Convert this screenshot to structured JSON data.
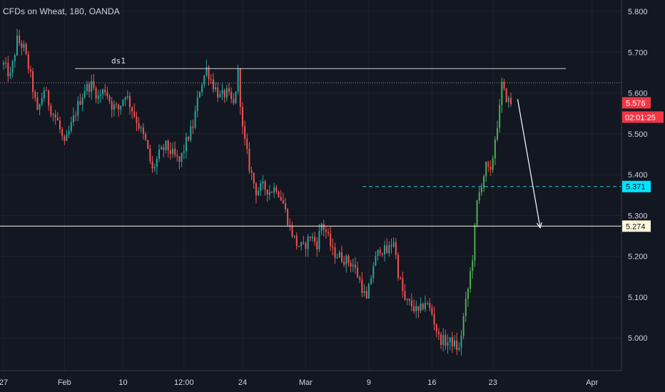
{
  "header": {
    "title": "CFDs on Wheat, 180, OANDA"
  },
  "chart_data": {
    "type": "candlestick",
    "symbol": "CFDs on Wheat",
    "interval": "180",
    "source": "OANDA",
    "y_ticks": [
      "5.800",
      "5.700",
      "5.600",
      "5.500",
      "5.400",
      "5.300",
      "5.200",
      "5.100",
      "5.000"
    ],
    "y_tick_values": [
      5.8,
      5.7,
      5.6,
      5.5,
      5.4,
      5.3,
      5.2,
      5.1,
      5.0
    ],
    "ylim": [
      4.92,
      5.828
    ],
    "x_labels": [
      {
        "label": "27",
        "idx": 0
      },
      {
        "label": "Feb",
        "idx": 27
      },
      {
        "label": "10",
        "idx": 53
      },
      {
        "label": "12:00",
        "idx": 80
      },
      {
        "label": "24",
        "idx": 106
      },
      {
        "label": "Mar",
        "idx": 134
      },
      {
        "label": "9",
        "idx": 162
      },
      {
        "label": "16",
        "idx": 190
      },
      {
        "label": "23",
        "idx": 217
      },
      {
        "label": "Apr",
        "idx": 261
      }
    ],
    "candle_count": 226,
    "price_path": [
      [
        0,
        5.67
      ],
      [
        3,
        5.64
      ],
      [
        6,
        5.73
      ],
      [
        9,
        5.71
      ],
      [
        12,
        5.64
      ],
      [
        15,
        5.55
      ],
      [
        18,
        5.61
      ],
      [
        21,
        5.56
      ],
      [
        24,
        5.53
      ],
      [
        27,
        5.47
      ],
      [
        30,
        5.52
      ],
      [
        33,
        5.57
      ],
      [
        36,
        5.61
      ],
      [
        39,
        5.62
      ],
      [
        42,
        5.59
      ],
      [
        45,
        5.61
      ],
      [
        48,
        5.57
      ],
      [
        51,
        5.56
      ],
      [
        54,
        5.6
      ],
      [
        57,
        5.56
      ],
      [
        60,
        5.52
      ],
      [
        63,
        5.48
      ],
      [
        66,
        5.41
      ],
      [
        69,
        5.45
      ],
      [
        72,
        5.47
      ],
      [
        75,
        5.45
      ],
      [
        78,
        5.43
      ],
      [
        81,
        5.48
      ],
      [
        84,
        5.52
      ],
      [
        87,
        5.61
      ],
      [
        90,
        5.66
      ],
      [
        93,
        5.62
      ],
      [
        96,
        5.59
      ],
      [
        99,
        5.6
      ],
      [
        102,
        5.57
      ],
      [
        104,
        5.65
      ],
      [
        106,
        5.51
      ],
      [
        109,
        5.42
      ],
      [
        112,
        5.36
      ],
      [
        115,
        5.37
      ],
      [
        118,
        5.36
      ],
      [
        121,
        5.37
      ],
      [
        124,
        5.33
      ],
      [
        127,
        5.27
      ],
      [
        130,
        5.23
      ],
      [
        133,
        5.22
      ],
      [
        136,
        5.25
      ],
      [
        139,
        5.23
      ],
      [
        141,
        5.28
      ],
      [
        143,
        5.26
      ],
      [
        146,
        5.21
      ],
      [
        149,
        5.2
      ],
      [
        152,
        5.19
      ],
      [
        155,
        5.18
      ],
      [
        158,
        5.14
      ],
      [
        161,
        5.09
      ],
      [
        164,
        5.18
      ],
      [
        167,
        5.22
      ],
      [
        170,
        5.21
      ],
      [
        173,
        5.24
      ],
      [
        175,
        5.16
      ],
      [
        178,
        5.09
      ],
      [
        181,
        5.08
      ],
      [
        184,
        5.06
      ],
      [
        187,
        5.09
      ],
      [
        190,
        5.06
      ],
      [
        193,
        5.0
      ],
      [
        196,
        4.99
      ],
      [
        199,
        4.99
      ],
      [
        202,
        4.97
      ],
      [
        204,
        5.05
      ],
      [
        206,
        5.12
      ],
      [
        208,
        5.2
      ],
      [
        210,
        5.33
      ],
      [
        212,
        5.38
      ],
      [
        214,
        5.42
      ],
      [
        216,
        5.4
      ],
      [
        218,
        5.49
      ],
      [
        220,
        5.56
      ],
      [
        221,
        5.62
      ],
      [
        222,
        5.6
      ],
      [
        224,
        5.58
      ],
      [
        225,
        5.576
      ]
    ],
    "annotations": {
      "resistance_label": "ds1",
      "resistance_price": 5.66,
      "current_price_line": 5.625,
      "dashed_level": 5.371,
      "support_level": 5.274,
      "arrow": {
        "from_idx": 228,
        "from_price": 5.585,
        "to_idx": 238,
        "to_price": 5.27
      }
    },
    "price_labels": {
      "last_price": "5.576",
      "countdown": "02:01:25",
      "dashed_level": "5.371",
      "support_level": "5.274"
    },
    "colors": {
      "background": "#131722",
      "up": "#26a69a",
      "down": "#ef5350",
      "up_vivid": "#4caf50",
      "down_vivid": "#f23645",
      "last_price_badge": "#f23645",
      "dashed_badge": "#00e5ff",
      "support_badge": "#fff8dc",
      "text": "#d1d4dc"
    }
  }
}
